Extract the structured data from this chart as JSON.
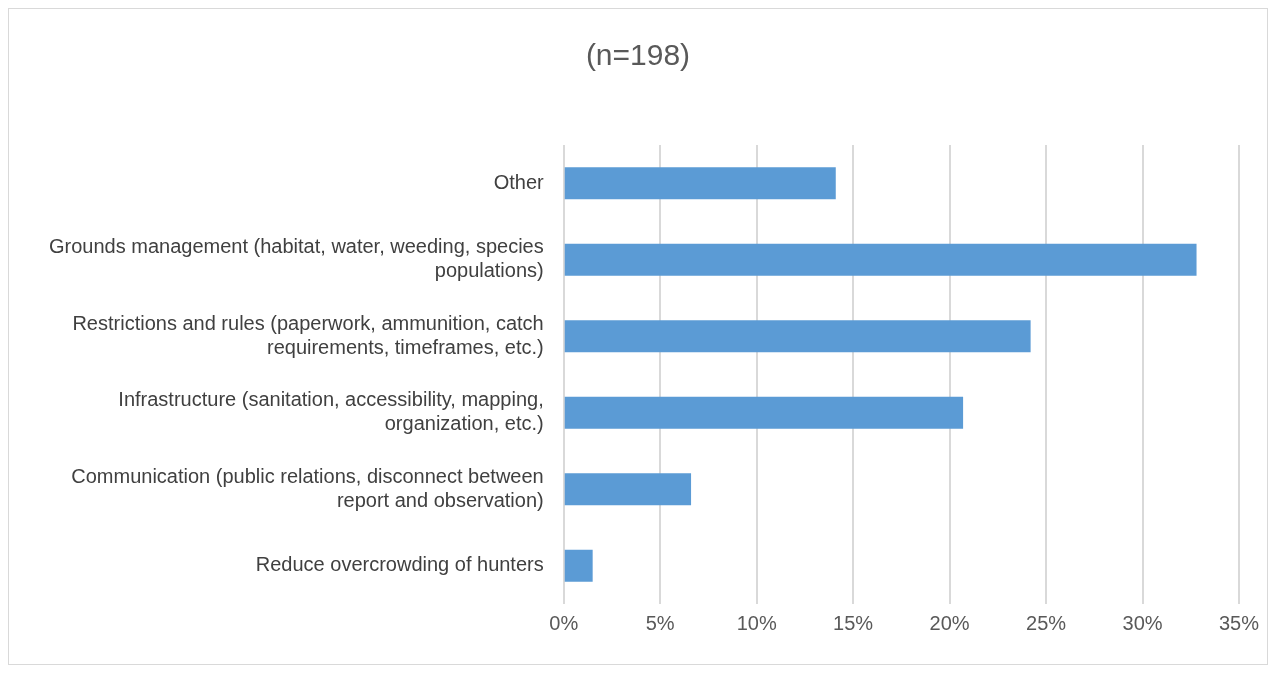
{
  "chart_data": {
    "type": "bar",
    "orientation": "horizontal",
    "title": "(n=198)",
    "categories": [
      "Other",
      "Grounds management (habitat, water, weeding, species populations)",
      "Restrictions and rules (paperwork, ammunition, catch requirements, timeframes, etc.)",
      "Infrastructure (sanitation, accessibility, mapping, organization, etc.)",
      "Communication (public relations, disconnect between report and observation)",
      "Reduce overcrowding of hunters"
    ],
    "values": [
      14.1,
      32.8,
      24.2,
      20.7,
      6.6,
      1.5
    ],
    "color": "#5b9bd5",
    "xlim": [
      0,
      35
    ],
    "xticks": [
      {
        "value": 0,
        "label": "0%"
      },
      {
        "value": 5,
        "label": "5%"
      },
      {
        "value": 10,
        "label": "10%"
      },
      {
        "value": 15,
        "label": "15%"
      },
      {
        "value": 20,
        "label": "20%"
      },
      {
        "value": 25,
        "label": "25%"
      },
      {
        "value": 30,
        "label": "30%"
      },
      {
        "value": 35,
        "label": "35%"
      }
    ],
    "grid": "x",
    "legend": false
  }
}
